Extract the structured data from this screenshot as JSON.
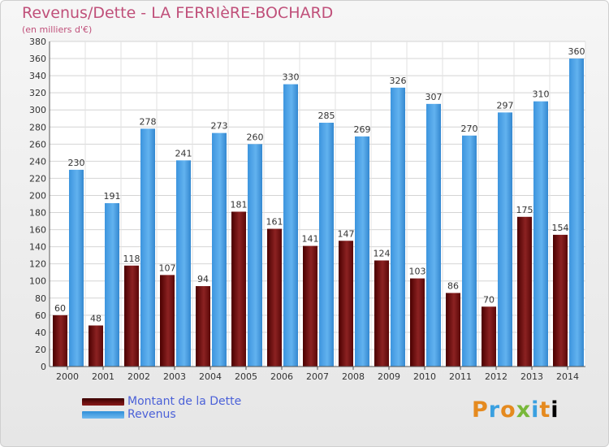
{
  "title": "Revenus/Dette - LA FERRIèRE-BOCHARD",
  "subtitle": "(en milliers d'€)",
  "brand": "Proxiti",
  "colors": {
    "title": "#c0507a",
    "dette": "#7a1515",
    "revenus": "#4aa3e8",
    "legend_text": "#4b61d8"
  },
  "chart_data": {
    "type": "bar",
    "categories": [
      "2000",
      "2001",
      "2002",
      "2003",
      "2004",
      "2005",
      "2006",
      "2007",
      "2008",
      "2009",
      "2010",
      "2011",
      "2012",
      "2013",
      "2014"
    ],
    "series": [
      {
        "name": "Montant de la Dette",
        "values": [
          60,
          48,
          118,
          107,
          94,
          181,
          161,
          141,
          147,
          124,
          103,
          86,
          70,
          175,
          154
        ]
      },
      {
        "name": "Revenus",
        "values": [
          230,
          191,
          278,
          241,
          273,
          260,
          330,
          285,
          269,
          326,
          307,
          270,
          297,
          310,
          360
        ]
      }
    ],
    "ylim": [
      0,
      380
    ],
    "ytick_step": 20,
    "grid": true,
    "legend_position": "bottom-left"
  }
}
